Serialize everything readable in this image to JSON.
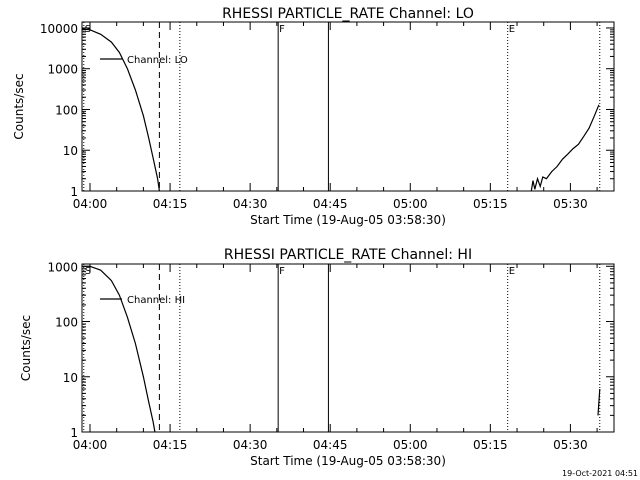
{
  "footer_stamp": "19-Oct-2021 04:51",
  "chart_data": [
    {
      "type": "line",
      "title": "RHESSI PARTICLE_RATE Channel: LO",
      "xlabel": "Start Time (19-Aug-05 03:58:30)",
      "ylabel": "Counts/sec",
      "yscale": "log",
      "xlim": [
        "03:58:30",
        "05:38:10"
      ],
      "ylim": [
        1,
        14000
      ],
      "xticks": [
        "04:00",
        "04:15",
        "04:30",
        "04:45",
        "05:00",
        "05:15",
        "05:30"
      ],
      "yticks": [
        "1",
        "10",
        "100",
        "1000",
        "10000"
      ],
      "legend": {
        "position": "top-left",
        "entries": [
          "Channel: LO"
        ]
      },
      "markers": [
        {
          "label": "S",
          "time": "03:58:50",
          "style": "dotted"
        },
        {
          "label": "",
          "time": "04:13:00",
          "style": "dashed"
        },
        {
          "label": "",
          "time": "04:16:50",
          "style": "dotted"
        },
        {
          "label": "F",
          "time": "04:35:15",
          "style": "solid"
        },
        {
          "label": "",
          "time": "04:44:40",
          "style": "solid"
        },
        {
          "label": "E",
          "time": "05:18:15",
          "style": "dotted"
        },
        {
          "label": "",
          "time": "05:35:30",
          "style": "dotted"
        }
      ],
      "series": [
        {
          "name": "Channel: LO",
          "segments": [
            [
              [
                "03:58:30",
                9500
              ],
              [
                "04:00:00",
                9000
              ],
              [
                "04:02:00",
                7000
              ],
              [
                "04:04:00",
                4500
              ],
              [
                "04:05:30",
                2500
              ],
              [
                "04:07:00",
                1000
              ],
              [
                "04:08:30",
                300
              ],
              [
                "04:10:00",
                70
              ],
              [
                "04:11:00",
                20
              ],
              [
                "04:12:00",
                5
              ],
              [
                "04:12:40",
                2
              ],
              [
                "04:13:00",
                1
              ]
            ],
            [
              [
                "05:22:40",
                1
              ],
              [
                "05:23:00",
                1.8
              ],
              [
                "05:23:20",
                1.1
              ],
              [
                "05:23:50",
                2.0
              ],
              [
                "05:24:20",
                1.3
              ],
              [
                "05:24:50",
                2.2
              ],
              [
                "05:25:30",
                2.0
              ],
              [
                "05:26:30",
                3.0
              ],
              [
                "05:27:30",
                4.0
              ],
              [
                "05:28:30",
                6.0
              ],
              [
                "05:29:30",
                8.0
              ],
              [
                "05:30:30",
                11
              ],
              [
                "05:31:30",
                14
              ],
              [
                "05:32:30",
                22
              ],
              [
                "05:33:30",
                35
              ],
              [
                "05:34:30",
                70
              ],
              [
                "05:35:20",
                130
              ]
            ]
          ]
        }
      ]
    },
    {
      "type": "line",
      "title": "RHESSI PARTICLE_RATE Channel: HI",
      "xlabel": "Start Time (19-Aug-05 03:58:30)",
      "ylabel": "Counts/sec",
      "yscale": "log",
      "xlim": [
        "03:58:30",
        "05:38:10"
      ],
      "ylim": [
        1,
        1100
      ],
      "xticks": [
        "04:00",
        "04:15",
        "04:30",
        "04:45",
        "05:00",
        "05:15",
        "05:30"
      ],
      "yticks": [
        "1",
        "10",
        "100",
        "1000"
      ],
      "legend": {
        "position": "top-left",
        "entries": [
          "Channel: HI"
        ]
      },
      "markers": [
        {
          "label": "S",
          "time": "03:58:50",
          "style": "dotted"
        },
        {
          "label": "",
          "time": "04:13:00",
          "style": "dashed"
        },
        {
          "label": "",
          "time": "04:16:50",
          "style": "dotted"
        },
        {
          "label": "F",
          "time": "04:35:15",
          "style": "solid"
        },
        {
          "label": "",
          "time": "04:44:40",
          "style": "solid"
        },
        {
          "label": "E",
          "time": "05:18:15",
          "style": "dotted"
        },
        {
          "label": "",
          "time": "05:35:30",
          "style": "dotted"
        }
      ],
      "series": [
        {
          "name": "Channel: HI",
          "segments": [
            [
              [
                "03:58:30",
                1000
              ],
              [
                "04:00:00",
                1000
              ],
              [
                "04:02:00",
                850
              ],
              [
                "04:04:00",
                550
              ],
              [
                "04:05:30",
                300
              ],
              [
                "04:07:00",
                120
              ],
              [
                "04:08:30",
                40
              ],
              [
                "04:10:00",
                10
              ],
              [
                "04:11:00",
                3.5
              ],
              [
                "04:11:50",
                1.5
              ],
              [
                "04:12:10",
                1
              ]
            ],
            [
              [
                "05:35:10",
                2
              ],
              [
                "05:35:20",
                3.5
              ],
              [
                "05:35:30",
                6
              ]
            ]
          ]
        }
      ]
    }
  ]
}
